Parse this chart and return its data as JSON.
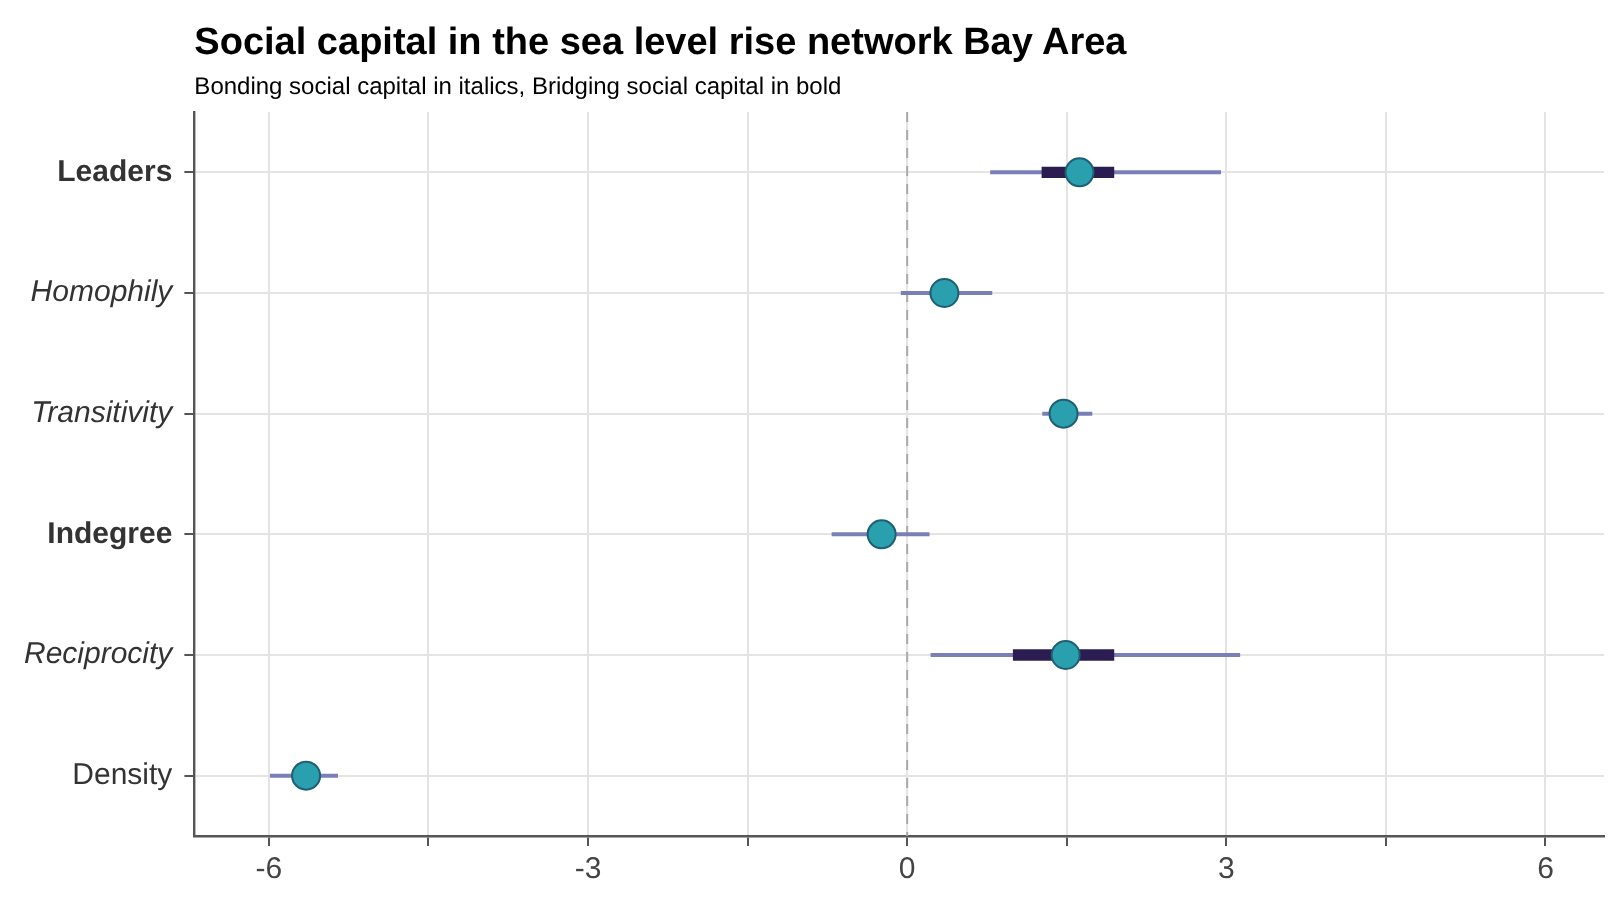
{
  "chart_data": {
    "type": "scatter",
    "orientation": "horizontal",
    "title": "Social capital in the sea level rise network Bay Area",
    "subtitle": "Bonding social capital in italics, Bridging social capital in bold",
    "categories": [
      "Leaders",
      "Homophily",
      "Transitivity",
      "Indegree",
      "Reciprocity",
      "Density"
    ],
    "series": [
      {
        "type": "bar",
        "color": "#2b1d52",
        "base": [
          1.27,
          null,
          null,
          null,
          1.0,
          null
        ],
        "values": [
          0.67,
          null,
          null,
          null,
          0.94,
          null
        ]
      },
      {
        "color": "#2a9fae",
        "values": [
          1.62,
          0.35,
          1.47,
          -0.24,
          1.49,
          -5.65
        ],
        "errors": [
          [
            0.78,
            2.95
          ],
          [
            -0.06,
            0.8
          ],
          [
            1.27,
            1.74
          ],
          [
            -0.71,
            0.21
          ],
          [
            0.22,
            3.13
          ],
          [
            -5.99,
            -5.35
          ]
        ]
      }
    ],
    "xlim": [
      -6.7,
      6.55
    ],
    "xticks": [
      -6,
      {
        "value": -4.5,
        "label": null
      },
      -3,
      {
        "value": -1.5,
        "label": null
      },
      0,
      {
        "value": 1.5,
        "label": null
      },
      3,
      {
        "value": 4.5,
        "label": null
      },
      6
    ],
    "grid": true,
    "marker": "circle",
    "ref_lines": [
      {
        "axis": "x",
        "value": 0,
        "line_style": "dashed",
        "color": "#aaaaaa"
      }
    ]
  }
}
